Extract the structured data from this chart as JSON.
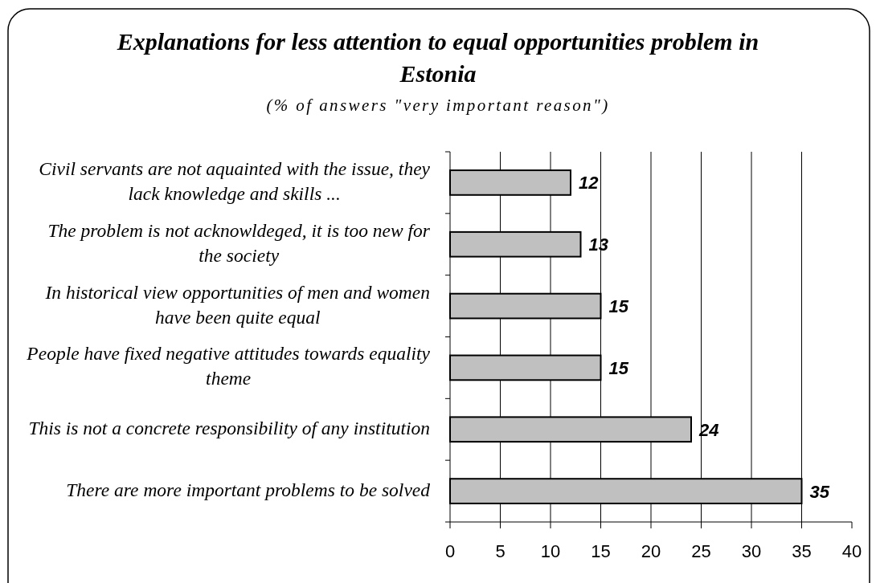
{
  "chart_data": {
    "type": "bar",
    "orientation": "horizontal",
    "title": "Explanations for less attention to equal opportunities problem in Estonia",
    "subtitle": "(% of answers \"very important reason\")",
    "categories": [
      "Civil servants are not aquainted with the issue, they lack knowledge and skills ...",
      "The problem is not acknowldeged, it is too new for the society",
      "In historical view opportunities of men and women have been quite equal",
      "People have fixed negative attitudes towards equality theme",
      "This is not a concrete responsibility of any institution",
      "There are more important problems to be solved"
    ],
    "values": [
      12,
      13,
      15,
      15,
      24,
      35
    ],
    "color": "#c0c0c0",
    "xlim": [
      0,
      40
    ],
    "xticks": [
      0,
      5,
      10,
      15,
      20,
      25,
      30,
      35,
      40
    ],
    "grid": "x",
    "data_labels": true
  }
}
